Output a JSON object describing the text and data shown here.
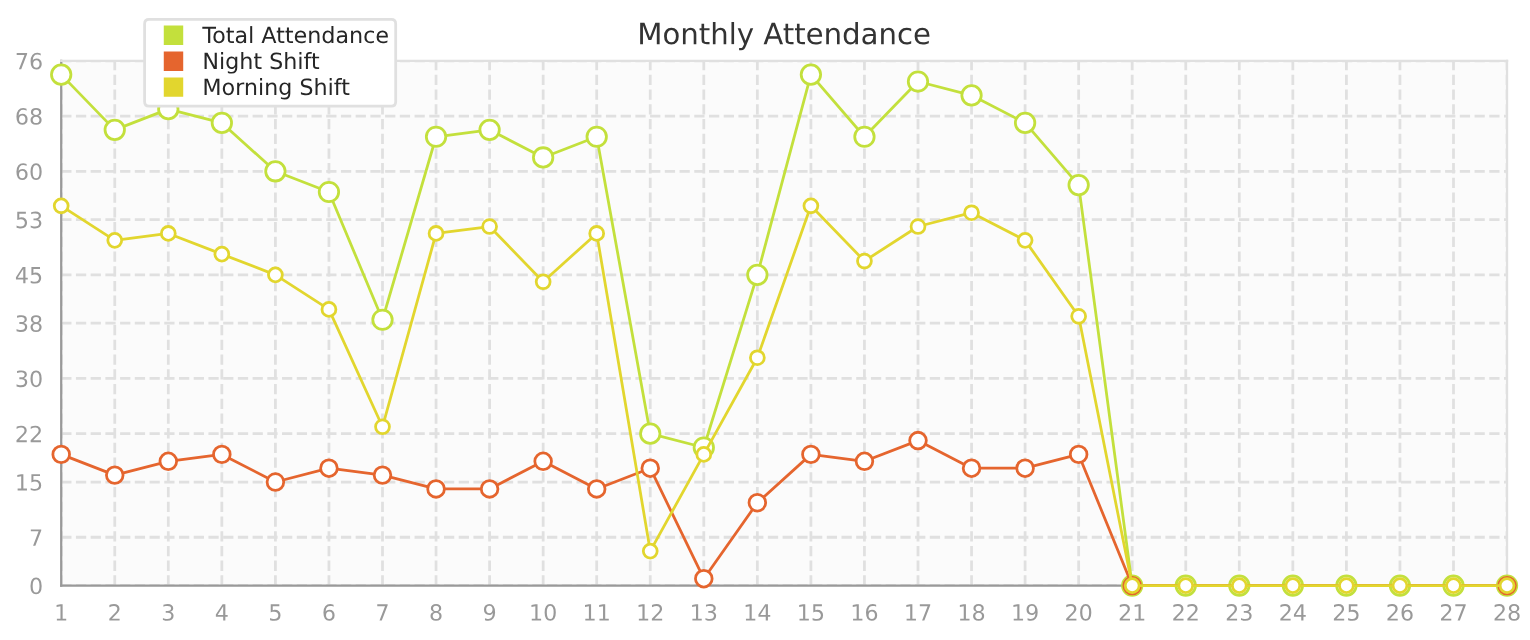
{
  "chart_data": {
    "type": "line",
    "title": "Monthly Attendance",
    "x": [
      1,
      2,
      3,
      4,
      5,
      6,
      7,
      8,
      9,
      10,
      11,
      12,
      13,
      14,
      15,
      16,
      17,
      18,
      19,
      20,
      21,
      22,
      23,
      24,
      25,
      26,
      27,
      28
    ],
    "series": [
      {
        "name": "Total Attendance",
        "color": "#c3e03c",
        "values": [
          74,
          66,
          69,
          67,
          60,
          57,
          38.5,
          65,
          66,
          62,
          65,
          22,
          20,
          45,
          74,
          65,
          73,
          71,
          67,
          58,
          0,
          0,
          0,
          0,
          0,
          0,
          0,
          0
        ]
      },
      {
        "name": "Night Shift",
        "color": "#e5652e",
        "values": [
          19,
          16,
          18,
          19,
          15,
          17,
          16,
          14,
          14,
          18,
          14,
          17,
          1,
          12,
          19,
          18,
          21,
          17,
          17,
          19,
          0,
          null,
          null,
          null,
          null,
          null,
          null,
          0
        ]
      },
      {
        "name": "Morning Shift",
        "color": "#e2d62e",
        "values": [
          55,
          50,
          51,
          48,
          45,
          40,
          23,
          51,
          52,
          44,
          51,
          5,
          19,
          33,
          55,
          47,
          52,
          54,
          50,
          39,
          0,
          0,
          0,
          0,
          0,
          0,
          0,
          0
        ]
      }
    ],
    "xlim": [
      1,
      28
    ],
    "xticks": [
      1,
      2,
      3,
      4,
      5,
      6,
      7,
      8,
      9,
      10,
      11,
      12,
      13,
      14,
      15,
      16,
      17,
      18,
      19,
      20,
      21,
      22,
      23,
      24,
      25,
      26,
      27,
      28
    ],
    "ylim": [
      0,
      76
    ],
    "yticks": [
      0,
      7,
      15,
      22,
      30,
      38,
      45,
      53,
      60,
      68,
      76
    ],
    "grid": true,
    "legend": "top left",
    "marker": "circle",
    "line_style": "solid"
  }
}
